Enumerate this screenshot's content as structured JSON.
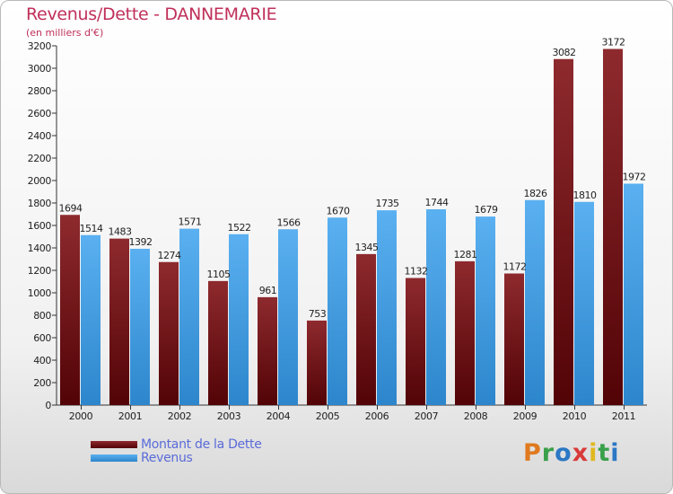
{
  "header": {
    "title": "Revenus/Dette - DANNEMARIE",
    "subtitle": "(en milliers d'€)"
  },
  "legend": {
    "items": [
      {
        "label": "Montant de la Dette",
        "color": "#6e0f14"
      },
      {
        "label": "Revenus",
        "color": "#4aa3e8"
      }
    ]
  },
  "logo": {
    "text": "Proxiti"
  },
  "chart_data": {
    "type": "bar",
    "title": "Revenus/Dette - DANNEMARIE",
    "subtitle": "(en milliers d'€)",
    "categories": [
      "2000",
      "2001",
      "2002",
      "2003",
      "2004",
      "2005",
      "2006",
      "2007",
      "2008",
      "2009",
      "2010",
      "2011"
    ],
    "series": [
      {
        "name": "Montant de la Dette",
        "color": "#7a1a1e",
        "values": [
          1694,
          1483,
          1274,
          1105,
          961,
          753,
          1345,
          1132,
          1281,
          1172,
          3082,
          3172
        ],
        "labels": [
          "1694",
          "1483",
          "1274",
          "1105",
          "961",
          "753",
          "1345",
          "1132",
          "1281",
          "1172",
          "3082",
          "3172"
        ]
      },
      {
        "name": "Revenus",
        "color": "#4aa3e8",
        "values": [
          1514,
          1392,
          1571,
          1522,
          1566,
          1670,
          1735,
          1744,
          1679,
          1826,
          1810,
          1972
        ],
        "labels": [
          "1514",
          "1392",
          "1571",
          "1522",
          "1566",
          "1670",
          "1735",
          "1744",
          "1679",
          "1826",
          "1810",
          "1972"
        ]
      }
    ],
    "ylim": [
      0,
      3200
    ],
    "yticks": [
      0,
      200,
      400,
      600,
      800,
      1000,
      1200,
      1400,
      1600,
      1800,
      2000,
      2200,
      2400,
      2600,
      2800,
      3000,
      3200
    ],
    "grid": false,
    "legend_position": "bottom-left"
  }
}
